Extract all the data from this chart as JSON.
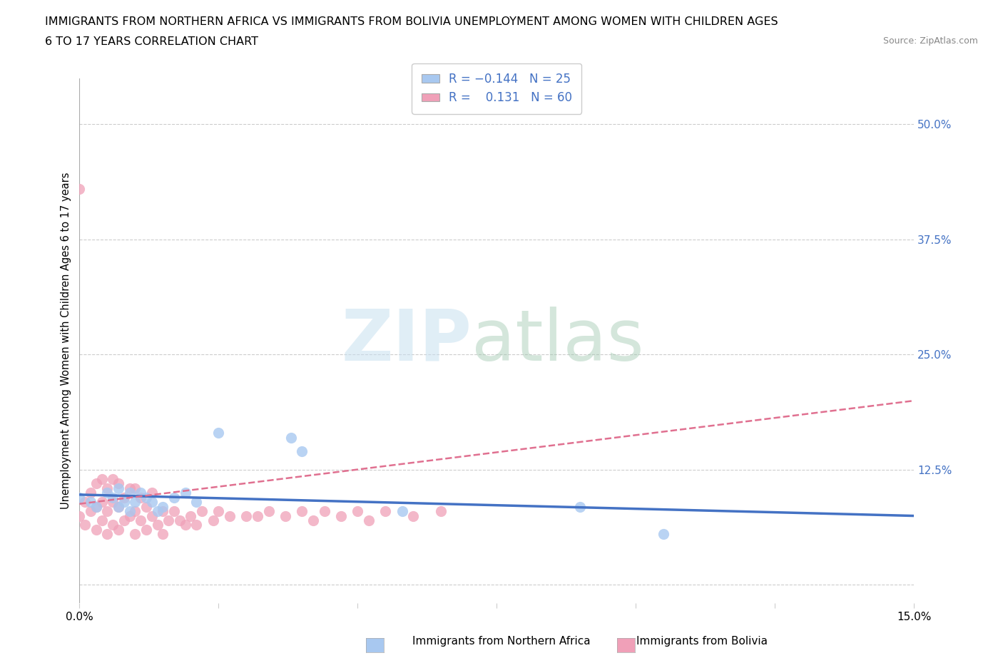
{
  "title_line1": "IMMIGRANTS FROM NORTHERN AFRICA VS IMMIGRANTS FROM BOLIVIA UNEMPLOYMENT AMONG WOMEN WITH CHILDREN AGES",
  "title_line2": "6 TO 17 YEARS CORRELATION CHART",
  "source": "Source: ZipAtlas.com",
  "ylabel": "Unemployment Among Women with Children Ages 6 to 17 years",
  "r_blue": -0.144,
  "n_blue": 25,
  "r_pink": 0.131,
  "n_pink": 60,
  "xlim": [
    0.0,
    0.15
  ],
  "ylim": [
    -0.02,
    0.55
  ],
  "yticks_right": [
    0.0,
    0.125,
    0.25,
    0.375,
    0.5
  ],
  "ytick_labels_right": [
    "",
    "12.5%",
    "25.0%",
    "37.5%",
    "50.0%"
  ],
  "color_blue": "#A8C8F0",
  "color_pink": "#F0A0B8",
  "color_trendline_blue": "#4472C4",
  "color_trendline_pink": "#E07090",
  "watermark_zip": "ZIP",
  "watermark_atlas": "atlas",
  "background_color": "#FFFFFF",
  "blue_scatter_x": [
    0.0,
    0.002,
    0.003,
    0.005,
    0.006,
    0.007,
    0.007,
    0.008,
    0.009,
    0.009,
    0.01,
    0.011,
    0.012,
    0.013,
    0.014,
    0.015,
    0.017,
    0.019,
    0.021,
    0.025,
    0.038,
    0.04,
    0.058,
    0.09,
    0.105
  ],
  "blue_scatter_y": [
    0.095,
    0.09,
    0.085,
    0.1,
    0.095,
    0.085,
    0.105,
    0.09,
    0.08,
    0.1,
    0.09,
    0.1,
    0.095,
    0.09,
    0.08,
    0.085,
    0.095,
    0.1,
    0.09,
    0.165,
    0.16,
    0.145,
    0.08,
    0.085,
    0.055
  ],
  "pink_scatter_x": [
    0.0,
    0.0,
    0.001,
    0.001,
    0.002,
    0.002,
    0.003,
    0.003,
    0.003,
    0.004,
    0.004,
    0.004,
    0.005,
    0.005,
    0.005,
    0.006,
    0.006,
    0.006,
    0.007,
    0.007,
    0.007,
    0.008,
    0.008,
    0.009,
    0.009,
    0.01,
    0.01,
    0.01,
    0.011,
    0.011,
    0.012,
    0.012,
    0.013,
    0.013,
    0.014,
    0.015,
    0.015,
    0.016,
    0.017,
    0.018,
    0.019,
    0.02,
    0.021,
    0.022,
    0.024,
    0.025,
    0.027,
    0.03,
    0.032,
    0.034,
    0.037,
    0.04,
    0.042,
    0.044,
    0.047,
    0.05,
    0.052,
    0.055,
    0.06,
    0.065
  ],
  "pink_scatter_y": [
    0.075,
    0.43,
    0.065,
    0.09,
    0.08,
    0.1,
    0.06,
    0.085,
    0.11,
    0.07,
    0.09,
    0.115,
    0.055,
    0.08,
    0.105,
    0.065,
    0.09,
    0.115,
    0.06,
    0.085,
    0.11,
    0.07,
    0.095,
    0.075,
    0.105,
    0.055,
    0.08,
    0.105,
    0.07,
    0.095,
    0.06,
    0.085,
    0.075,
    0.1,
    0.065,
    0.055,
    0.08,
    0.07,
    0.08,
    0.07,
    0.065,
    0.075,
    0.065,
    0.08,
    0.07,
    0.08,
    0.075,
    0.075,
    0.075,
    0.08,
    0.075,
    0.08,
    0.07,
    0.08,
    0.075,
    0.08,
    0.07,
    0.08,
    0.075,
    0.08
  ],
  "blue_trend_x": [
    0.0,
    0.15
  ],
  "blue_trend_y": [
    0.098,
    0.075
  ],
  "pink_trend_x": [
    0.0,
    0.15
  ],
  "pink_trend_y": [
    0.088,
    0.2
  ]
}
